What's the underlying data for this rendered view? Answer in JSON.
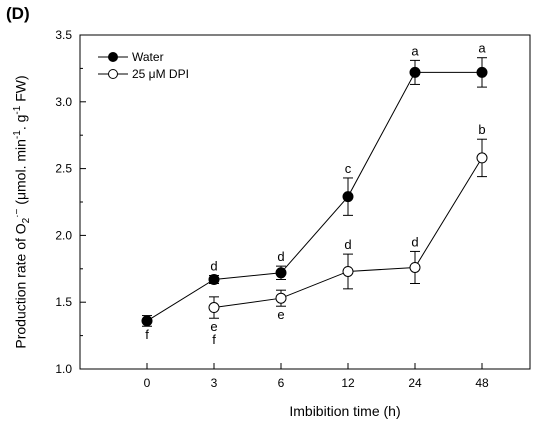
{
  "panel_label": "(D)",
  "chart_data": {
    "type": "line",
    "title": "",
    "xlabel": "Imbibition time (h)",
    "ylabel_parts": {
      "prefix": "Production rate of O",
      "sub": "2",
      "sup": "·−",
      "middle": " (μmol. min",
      "sup2": "-1",
      "middle2": ". g",
      "sup3": "-1",
      "suffix": " FW)"
    },
    "categories": [
      "0",
      "3",
      "6",
      "12",
      "24",
      "48"
    ],
    "ylim": [
      1.0,
      3.5
    ],
    "yticks": [
      "1.0",
      "1.5",
      "2.0",
      "2.5",
      "3.0",
      "3.5"
    ],
    "legend_position": "top-left",
    "grid": false,
    "series": [
      {
        "name": "Water",
        "marker": "filled-circle",
        "color": "#000000",
        "values": [
          1.36,
          1.67,
          1.72,
          2.29,
          3.22,
          3.22
        ],
        "errors": [
          0.04,
          0.03,
          0.05,
          0.14,
          0.09,
          0.11
        ],
        "labels": [
          {
            "text": "f",
            "pos": "below"
          },
          {
            "text": "d",
            "pos": "above"
          },
          {
            "text": "d",
            "pos": "above"
          },
          {
            "text": "c",
            "pos": "above"
          },
          {
            "text": "a",
            "pos": "above"
          },
          {
            "text": "a",
            "pos": "above"
          }
        ]
      },
      {
        "name": "25 μM DPI",
        "marker": "open-circle",
        "color": "#000000",
        "values": [
          null,
          1.46,
          1.53,
          1.73,
          1.76,
          2.58
        ],
        "errors": [
          null,
          0.08,
          0.06,
          0.13,
          0.12,
          0.14
        ],
        "labels": [
          null,
          {
            "text": "e",
            "pos": "below"
          },
          {
            "text": "e",
            "pos": "below"
          },
          {
            "text": "d",
            "pos": "above"
          },
          {
            "text": "d",
            "pos": "above"
          },
          {
            "text": "b",
            "pos": "above"
          }
        ],
        "extra_labels": [
          {
            "index": 1,
            "text": "f",
            "pos": "below2"
          }
        ]
      }
    ]
  }
}
